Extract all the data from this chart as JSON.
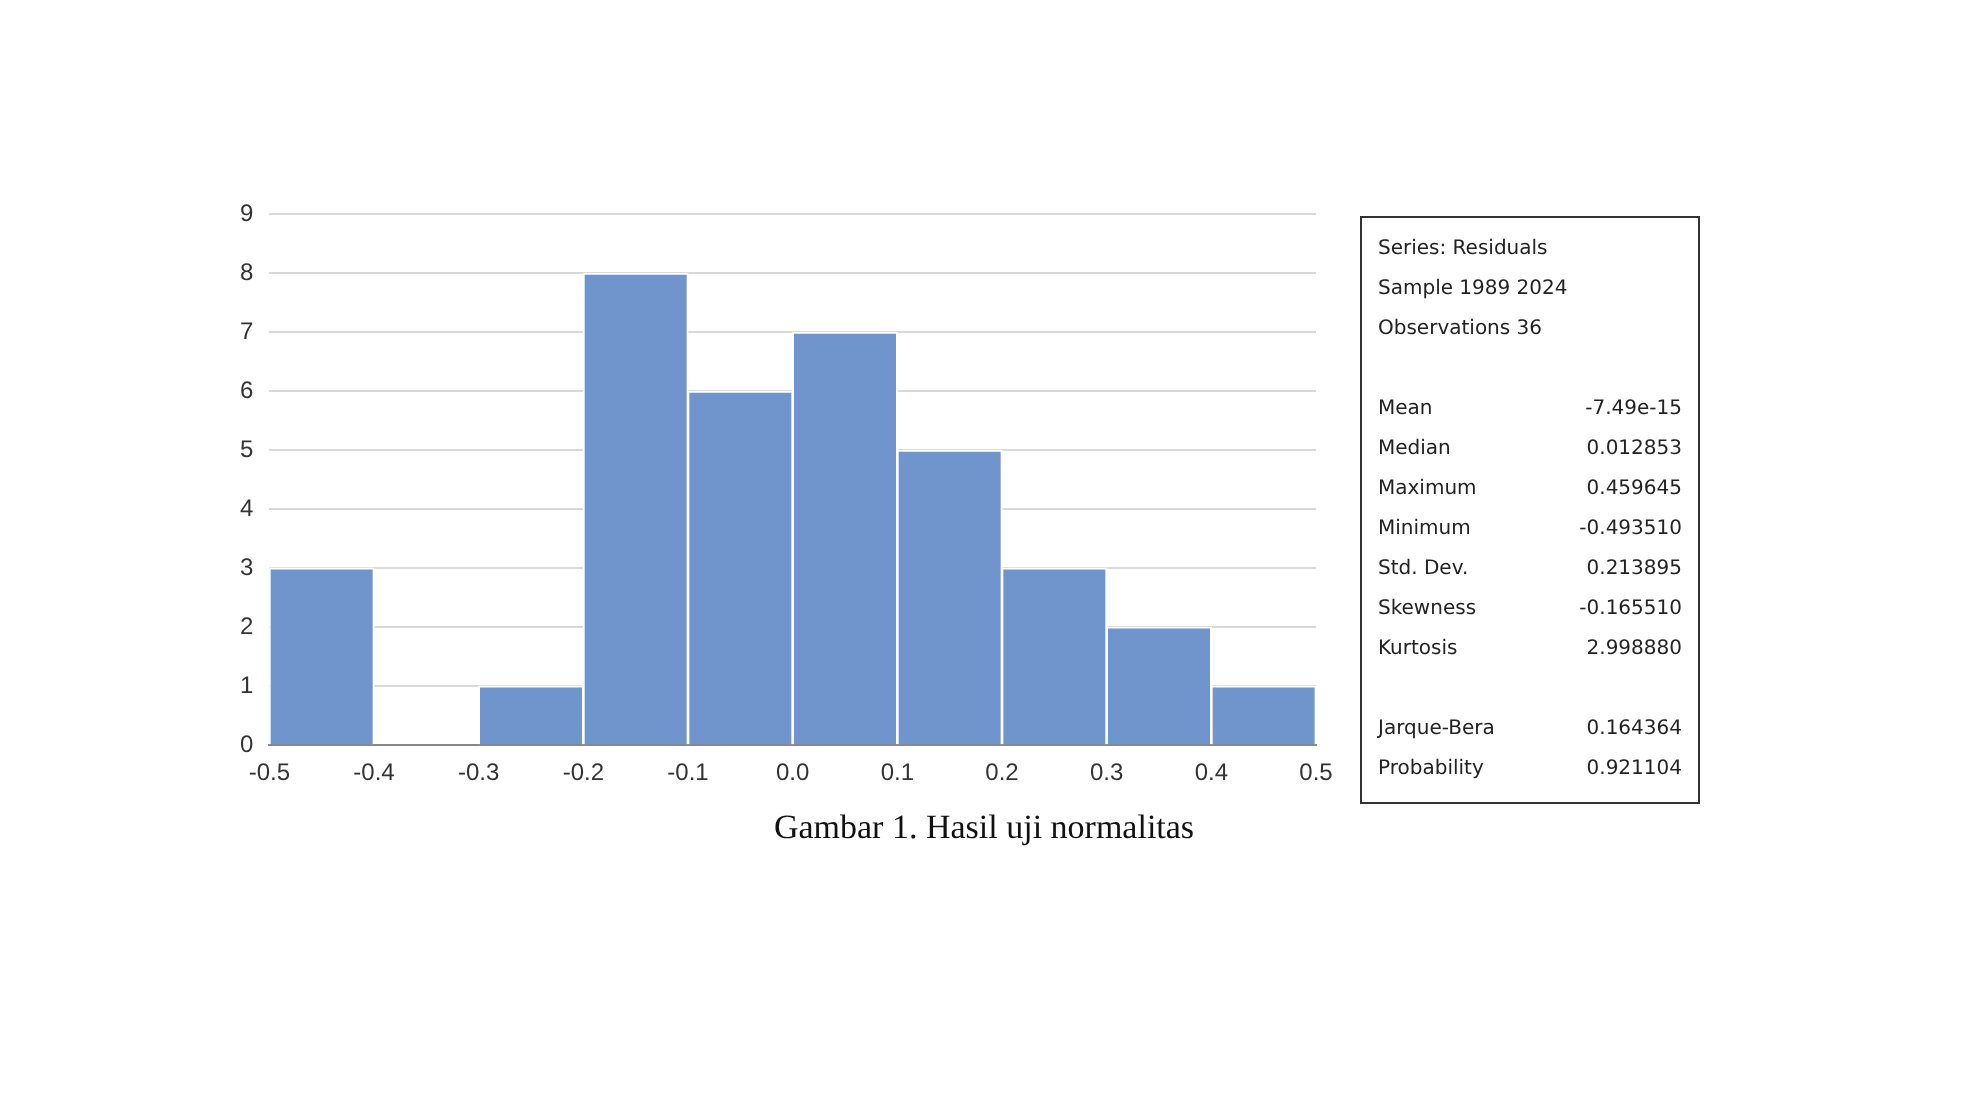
{
  "chart_data": {
    "type": "histogram",
    "title": "Gambar 1. Hasil uji normalitas",
    "bins": [
      -0.5,
      -0.4,
      -0.3,
      -0.2,
      -0.1,
      0,
      0.1,
      0.2,
      0.3,
      0.4,
      0.5
    ],
    "values": [
      3,
      0,
      1,
      8,
      6,
      7,
      5,
      3,
      2,
      1
    ],
    "color": "#7094cc",
    "xlim": [
      -0.5,
      0.5
    ],
    "xticks": [
      -0.5,
      -0.4,
      -0.3,
      -0.2,
      -0.1,
      {
        "value": 0,
        "label": "0.0"
      },
      0.1,
      0.2,
      0.3,
      0.4,
      0.5
    ],
    "ylim": [
      0,
      9
    ],
    "yticks": [
      0,
      1,
      2,
      3,
      4,
      5,
      6,
      7,
      8,
      9
    ],
    "grid": "y",
    "annotations": [
      "Series: Residuals",
      "Sample 1989 2024",
      "Observations 36",
      "Mean\t-7.49e-15",
      "Median\t0.012853",
      "Maximum\t0.459645",
      "Minimum\t-0.493510",
      "Std. Dev.\t0.213895",
      "Skewness\t-0.165510",
      "Kurtosis\t2.998880",
      "Jarque-Bera\t0.164364",
      "Probability\t0.921104"
    ]
  }
}
